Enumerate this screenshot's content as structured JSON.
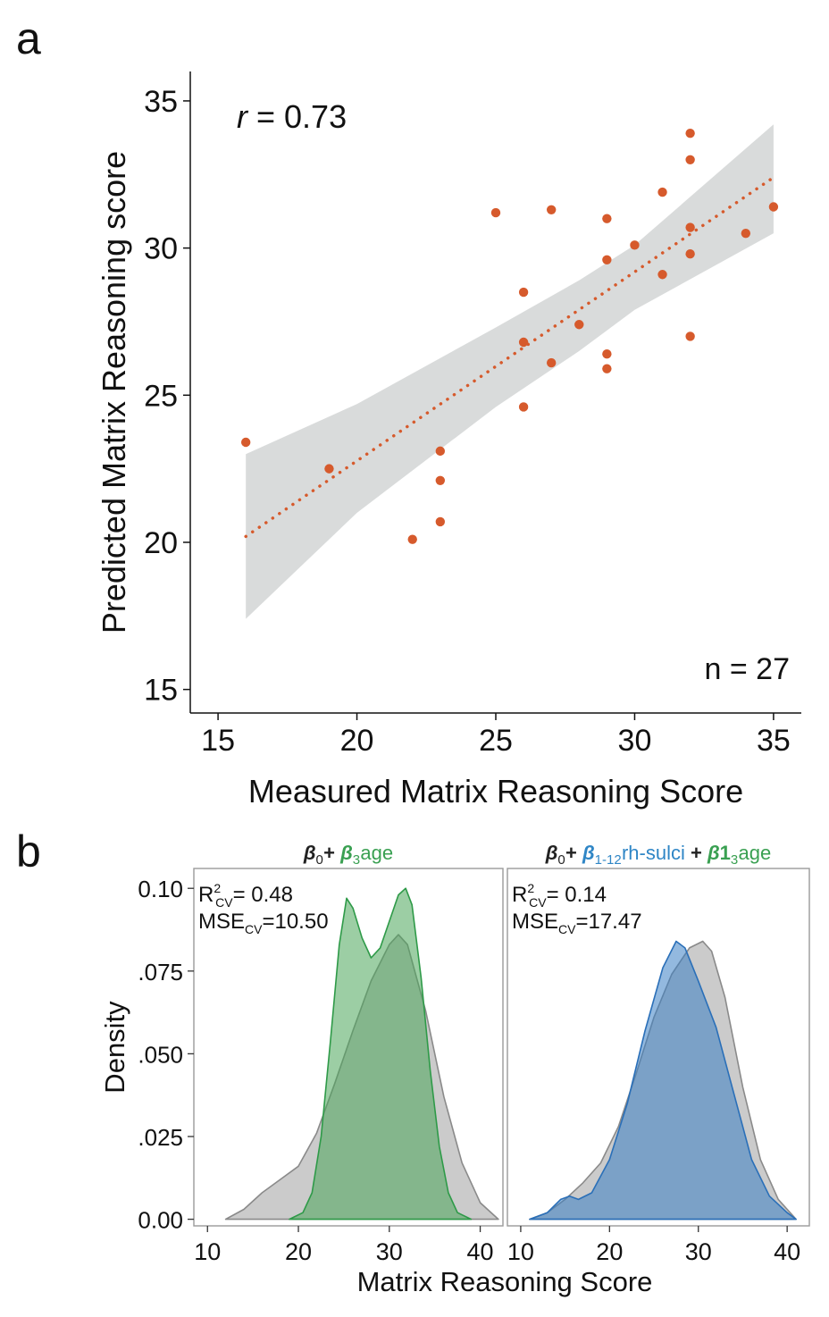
{
  "panel_labels": {
    "a": "a",
    "b": "b"
  },
  "colors": {
    "scatter": "#d65a2c",
    "band": "#d9dbdb",
    "observed": "#a9a9a9",
    "green": "#4aa55a",
    "blue": "#3a7fc4"
  },
  "chart_data": [
    {
      "type": "scatter",
      "panel": "a",
      "xlabel": "Measured Matrix Reasoning Score",
      "ylabel": "Predicted Matrix Reasoning score",
      "xlim": [
        14,
        36
      ],
      "ylim": [
        14.2,
        36
      ],
      "xticks": [
        15,
        20,
        25,
        30,
        35
      ],
      "yticks": [
        15,
        20,
        25,
        30,
        35
      ],
      "annotation_r": {
        "symbol": "r",
        "text": " = 0.73"
      },
      "annotation_n": "n = 27",
      "fit": {
        "x": [
          16,
          35
        ],
        "y": [
          20.2,
          32.4
        ],
        "style": "dotted"
      },
      "ci_band": {
        "x": [
          16,
          20,
          25,
          28,
          30,
          35
        ],
        "upper": [
          23.0,
          24.7,
          27.3,
          28.9,
          30.1,
          34.2
        ],
        "lower": [
          17.4,
          21.0,
          24.6,
          26.5,
          27.9,
          30.5
        ]
      },
      "points": [
        {
          "x": 16,
          "y": 23.4
        },
        {
          "x": 19,
          "y": 22.5
        },
        {
          "x": 22,
          "y": 20.1
        },
        {
          "x": 23,
          "y": 23.1
        },
        {
          "x": 23,
          "y": 22.1
        },
        {
          "x": 23,
          "y": 20.7
        },
        {
          "x": 25,
          "y": 31.2
        },
        {
          "x": 26,
          "y": 28.5
        },
        {
          "x": 26,
          "y": 26.8
        },
        {
          "x": 26,
          "y": 24.6
        },
        {
          "x": 27,
          "y": 31.3
        },
        {
          "x": 27,
          "y": 26.1
        },
        {
          "x": 28,
          "y": 27.4
        },
        {
          "x": 29,
          "y": 31.0
        },
        {
          "x": 29,
          "y": 29.6
        },
        {
          "x": 29,
          "y": 26.4
        },
        {
          "x": 29,
          "y": 25.9
        },
        {
          "x": 30,
          "y": 30.1
        },
        {
          "x": 31,
          "y": 31.9
        },
        {
          "x": 31,
          "y": 29.1
        },
        {
          "x": 32,
          "y": 33.9
        },
        {
          "x": 32,
          "y": 33.0
        },
        {
          "x": 32,
          "y": 30.7
        },
        {
          "x": 32,
          "y": 29.8
        },
        {
          "x": 32,
          "y": 27.0
        },
        {
          "x": 34,
          "y": 30.5
        },
        {
          "x": 35,
          "y": 31.4
        }
      ]
    },
    {
      "type": "area",
      "panel": "b-left",
      "title_parts": [
        {
          "text": "β",
          "sub": "0",
          "color": "#222222",
          "bold": true,
          "italic": true
        },
        {
          "text": " + ",
          "color": "#222222",
          "bold": true
        },
        {
          "text": "β",
          "sub": "3",
          "color": "#3aa052",
          "bold": true,
          "italic": true
        },
        {
          "text": "age",
          "color": "#3aa052"
        }
      ],
      "r2": {
        "label": "R",
        "sup": "2",
        "sub": "CV",
        "value": "= 0.48"
      },
      "mse": {
        "label": "MSE",
        "sub": "CV",
        "value": "=10.50"
      },
      "ylabel": "Density",
      "xlim": [
        8.5,
        42.5
      ],
      "ylim": [
        -0.002,
        0.106
      ],
      "xticks": [
        10,
        20,
        30,
        40
      ],
      "ytick_values": [
        0.0,
        0.025,
        0.05,
        0.075,
        0.1
      ],
      "ytick_labels": [
        "0.00",
        ".025",
        ".050",
        ".075",
        "0.10"
      ],
      "series": [
        {
          "name": "",
          "color": "#a9a9a9",
          "x": [
            12,
            14,
            16,
            18,
            20,
            22,
            24,
            26,
            28,
            30,
            31,
            32,
            34,
            36,
            38,
            40,
            42
          ],
          "y": [
            0.0,
            0.003,
            0.008,
            0.012,
            0.016,
            0.026,
            0.041,
            0.057,
            0.072,
            0.083,
            0.086,
            0.083,
            0.063,
            0.037,
            0.017,
            0.005,
            0.0
          ]
        },
        {
          "name": "",
          "color": "#4aa55a",
          "x": [
            19,
            20.5,
            21.5,
            22.5,
            23.5,
            24.5,
            25.3,
            26,
            27,
            28,
            29,
            30,
            31,
            31.8,
            32.5,
            33.5,
            34.5,
            35.5,
            36.5,
            37.5,
            39
          ],
          "y": [
            0.0,
            0.002,
            0.008,
            0.025,
            0.053,
            0.083,
            0.097,
            0.094,
            0.085,
            0.079,
            0.082,
            0.09,
            0.098,
            0.1,
            0.095,
            0.073,
            0.045,
            0.022,
            0.008,
            0.002,
            0.0
          ]
        }
      ],
      "xlabel": ""
    },
    {
      "type": "area",
      "panel": "b-right",
      "title_parts": [
        {
          "text": "β",
          "sub": "0",
          "color": "#222222",
          "bold": true,
          "italic": true
        },
        {
          "text": " + ",
          "color": "#222222",
          "bold": true
        },
        {
          "text": "β",
          "sub": "1-12",
          "color": "#2f86c6",
          "bold": true,
          "italic": true
        },
        {
          "text": " rh-sulci",
          "color": "#2f86c6"
        },
        {
          "text": " + ",
          "color": "#222222",
          "bold": true
        },
        {
          "text": "β",
          "color": "#3aa052",
          "bold": true,
          "italic": true
        },
        {
          "text": "1",
          "sub": "3",
          "color": "#3aa052",
          "bold": true
        },
        {
          "text": "age",
          "color": "#3aa052"
        }
      ],
      "r2": {
        "label": "R",
        "sup": "2",
        "sub": "CV",
        "value": "= 0.14"
      },
      "mse": {
        "label": "MSE",
        "sub": "CV",
        "value": "=17.47"
      },
      "xlim": [
        8.5,
        42.5
      ],
      "ylim": [
        -0.002,
        0.106
      ],
      "xticks": [
        10,
        20,
        30,
        40
      ],
      "series": [
        {
          "name": "",
          "color": "#a9a9a9",
          "x": [
            11,
            13,
            15,
            17,
            19,
            21,
            23,
            25,
            27,
            29,
            30.5,
            31.5,
            33,
            35,
            37,
            39,
            41
          ],
          "y": [
            0.0,
            0.002,
            0.006,
            0.011,
            0.017,
            0.028,
            0.044,
            0.061,
            0.074,
            0.082,
            0.084,
            0.081,
            0.067,
            0.04,
            0.018,
            0.006,
            0.0
          ]
        },
        {
          "name": "",
          "color": "#3a7fc4",
          "x": [
            11,
            13,
            14.5,
            15.5,
            16.5,
            18,
            20,
            22,
            24,
            26,
            27.5,
            28.5,
            30,
            32,
            34,
            36,
            38,
            40,
            41
          ],
          "y": [
            0.0,
            0.002,
            0.006,
            0.007,
            0.006,
            0.008,
            0.018,
            0.035,
            0.057,
            0.076,
            0.084,
            0.082,
            0.072,
            0.058,
            0.038,
            0.018,
            0.007,
            0.002,
            0.0
          ]
        }
      ],
      "xlabel": ""
    }
  ],
  "shared_xlabel_b": "Matrix Reasoning Score"
}
